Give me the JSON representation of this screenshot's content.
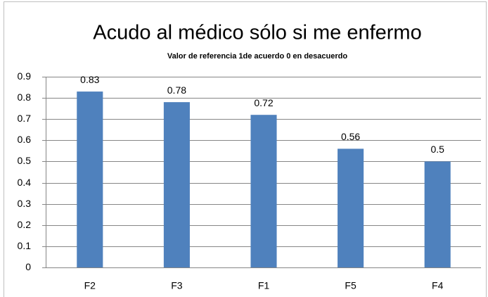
{
  "chart_data": {
    "type": "bar",
    "title": "Acudo al médico sólo si me enfermo",
    "subtitle": "Valor de referencia 1de acuerdo 0 en desacuerdo",
    "categories": [
      "F2",
      "F3",
      "F1",
      "F5",
      "F4"
    ],
    "values": [
      0.83,
      0.78,
      0.72,
      0.56,
      0.5
    ],
    "color": "#4f81bd",
    "ylim": [
      0,
      0.9
    ],
    "yticks": [
      0,
      0.1,
      0.2,
      0.3,
      0.4,
      0.5,
      0.6,
      0.7,
      0.8,
      0.9
    ],
    "grid": true
  }
}
